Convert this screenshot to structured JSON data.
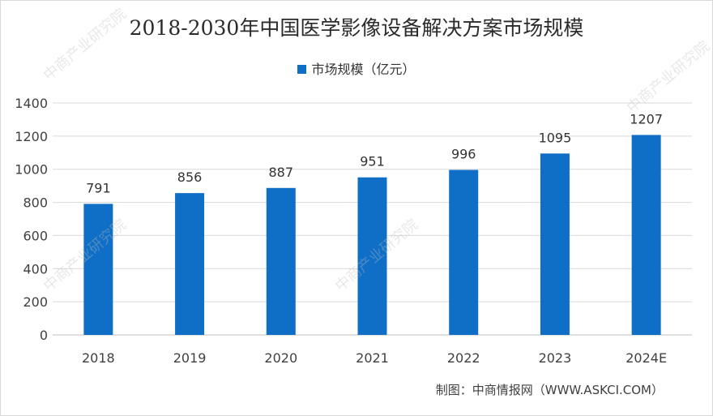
{
  "chart_data": {
    "type": "bar",
    "title": "2018-2030年中国医学影像设备解决方案市场规模",
    "categories": [
      "2018",
      "2019",
      "2020",
      "2021",
      "2022",
      "2023",
      "2024E"
    ],
    "series": [
      {
        "name": "市场规模（亿元）",
        "values": [
          791,
          856,
          887,
          951,
          996,
          1095,
          1207
        ],
        "color": "#0f6fc6"
      }
    ],
    "data_labels": [
      "791",
      "856",
      "887",
      "951",
      "996",
      "1095",
      "1207"
    ],
    "ylim": [
      0,
      1400
    ],
    "yticks": [
      "0",
      "200",
      "400",
      "600",
      "800",
      "1000",
      "1200",
      "1400"
    ],
    "grid": true,
    "legend": "top-center"
  },
  "credit": "制图：中商情报网（WWW.ASKCI.COM）",
  "watermark_text": "中商产业研究院"
}
